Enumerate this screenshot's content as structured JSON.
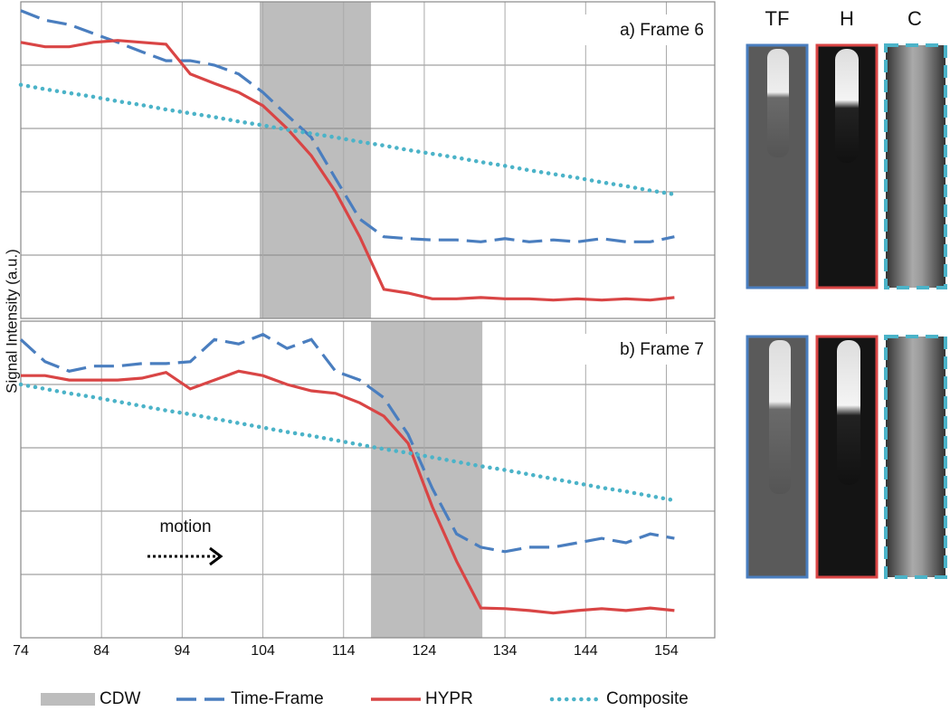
{
  "chart_data": {
    "type": "line",
    "ylabel": "Signal Intensity (a.u.)",
    "x": [
      74,
      77,
      80,
      83,
      86,
      89,
      92,
      95,
      98,
      101,
      104,
      107,
      110,
      113,
      116,
      119,
      122,
      125,
      128,
      131,
      134,
      137,
      140,
      143,
      146,
      149,
      152,
      155
    ],
    "xlim": [
      74,
      160
    ],
    "xticks": [
      74,
      84,
      94,
      104,
      114,
      124,
      134,
      144,
      154
    ],
    "ylim": [
      0,
      5
    ],
    "yticks": [
      1,
      2,
      3,
      4
    ],
    "grid": true,
    "shade": {
      "name": "CDW",
      "color": "#bdbdbd"
    },
    "series": [
      {
        "name": "Time-Frame",
        "color": "#4a7ebf",
        "style": "dashed"
      },
      {
        "name": "HYPR",
        "color": "#d94545",
        "style": "solid"
      },
      {
        "name": "Composite",
        "color": "#4bb3c8",
        "style": "dotted"
      }
    ],
    "annotation": "motion",
    "panels": [
      {
        "title": "a) Frame 6",
        "cdw": [
          103.6,
          117.4
        ],
        "values": [
          [
            4.86,
            4.71,
            4.64,
            4.5,
            4.36,
            4.21,
            4.07,
            4.07,
            4.0,
            3.86,
            3.57,
            3.21,
            2.86,
            2.21,
            1.57,
            1.29,
            1.26,
            1.24,
            1.24,
            1.21,
            1.26,
            1.21,
            1.24,
            1.21,
            1.26,
            1.21,
            1.21,
            1.29
          ],
          [
            4.36,
            4.29,
            4.29,
            4.36,
            4.39,
            4.36,
            4.33,
            3.86,
            3.71,
            3.57,
            3.36,
            3.0,
            2.57,
            2.0,
            1.29,
            0.46,
            0.4,
            0.31,
            0.31,
            0.33,
            0.31,
            0.31,
            0.29,
            0.31,
            0.29,
            0.31,
            0.29,
            0.33
          ],
          [
            3.69,
            3.62,
            3.56,
            3.5,
            3.43,
            3.37,
            3.3,
            3.24,
            3.18,
            3.11,
            3.05,
            2.98,
            2.92,
            2.86,
            2.79,
            2.73,
            2.66,
            2.6,
            2.54,
            2.47,
            2.41,
            2.34,
            2.28,
            2.22,
            2.15,
            2.09,
            2.02,
            1.96
          ]
        ]
      },
      {
        "title": "b) Frame 7",
        "cdw": [
          117.4,
          131.2
        ],
        "values": [
          [
            4.71,
            4.36,
            4.21,
            4.29,
            4.29,
            4.33,
            4.33,
            4.36,
            4.71,
            4.64,
            4.79,
            4.57,
            4.71,
            4.21,
            4.07,
            3.79,
            3.21,
            2.36,
            1.64,
            1.43,
            1.36,
            1.43,
            1.43,
            1.5,
            1.57,
            1.5,
            1.64,
            1.57
          ],
          [
            4.14,
            4.14,
            4.07,
            4.07,
            4.07,
            4.1,
            4.19,
            3.93,
            4.07,
            4.21,
            4.14,
            4.0,
            3.9,
            3.86,
            3.71,
            3.5,
            3.07,
            2.07,
            1.21,
            0.47,
            0.46,
            0.43,
            0.39,
            0.43,
            0.46,
            0.43,
            0.47,
            0.43
          ],
          [
            4.0,
            3.93,
            3.86,
            3.8,
            3.73,
            3.66,
            3.59,
            3.53,
            3.46,
            3.39,
            3.32,
            3.25,
            3.19,
            3.12,
            3.05,
            2.98,
            2.92,
            2.85,
            2.78,
            2.71,
            2.65,
            2.58,
            2.51,
            2.44,
            2.37,
            2.31,
            2.24,
            2.17
          ]
        ]
      }
    ]
  },
  "thumbnails": {
    "labels": [
      "TF",
      "H",
      "C"
    ]
  }
}
